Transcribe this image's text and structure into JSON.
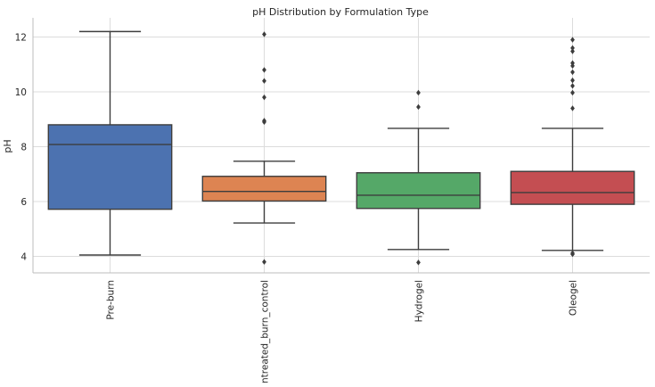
{
  "chart_data": {
    "type": "box",
    "title": "pH Distribution by Formulation Type",
    "xlabel": "",
    "ylabel": "pH",
    "ylim": [
      3.4,
      12.7
    ],
    "yticks": [
      4,
      6,
      8,
      10,
      12
    ],
    "grid": true,
    "categories": [
      "Pre-burn",
      "Untreated_burn_control",
      "Hydrogel",
      "Oleogel"
    ],
    "colors": [
      "#4c72b0",
      "#dd8452",
      "#55a868",
      "#c44e52"
    ],
    "boxes": [
      {
        "category": "Pre-burn",
        "whisker_low": 4.05,
        "q1": 5.72,
        "median": 8.08,
        "q3": 8.8,
        "whisker_high": 12.2,
        "outliers": []
      },
      {
        "category": "Untreated_burn_control",
        "whisker_low": 5.22,
        "q1": 6.02,
        "median": 6.37,
        "q3": 6.92,
        "whisker_high": 7.47,
        "outliers": [
          3.8,
          8.9,
          8.95,
          9.8,
          10.4,
          10.8,
          12.1
        ]
      },
      {
        "category": "Hydrogel",
        "whisker_low": 4.25,
        "q1": 5.75,
        "median": 6.23,
        "q3": 7.05,
        "whisker_high": 8.67,
        "outliers": [
          3.78,
          9.45,
          9.97
        ]
      },
      {
        "category": "Oleogel",
        "whisker_low": 4.22,
        "q1": 5.9,
        "median": 6.33,
        "q3": 7.1,
        "whisker_high": 8.67,
        "outliers": [
          4.08,
          4.12,
          9.4,
          9.97,
          10.22,
          10.42,
          10.72,
          10.95,
          11.05,
          11.48,
          11.6,
          11.9
        ]
      }
    ]
  }
}
